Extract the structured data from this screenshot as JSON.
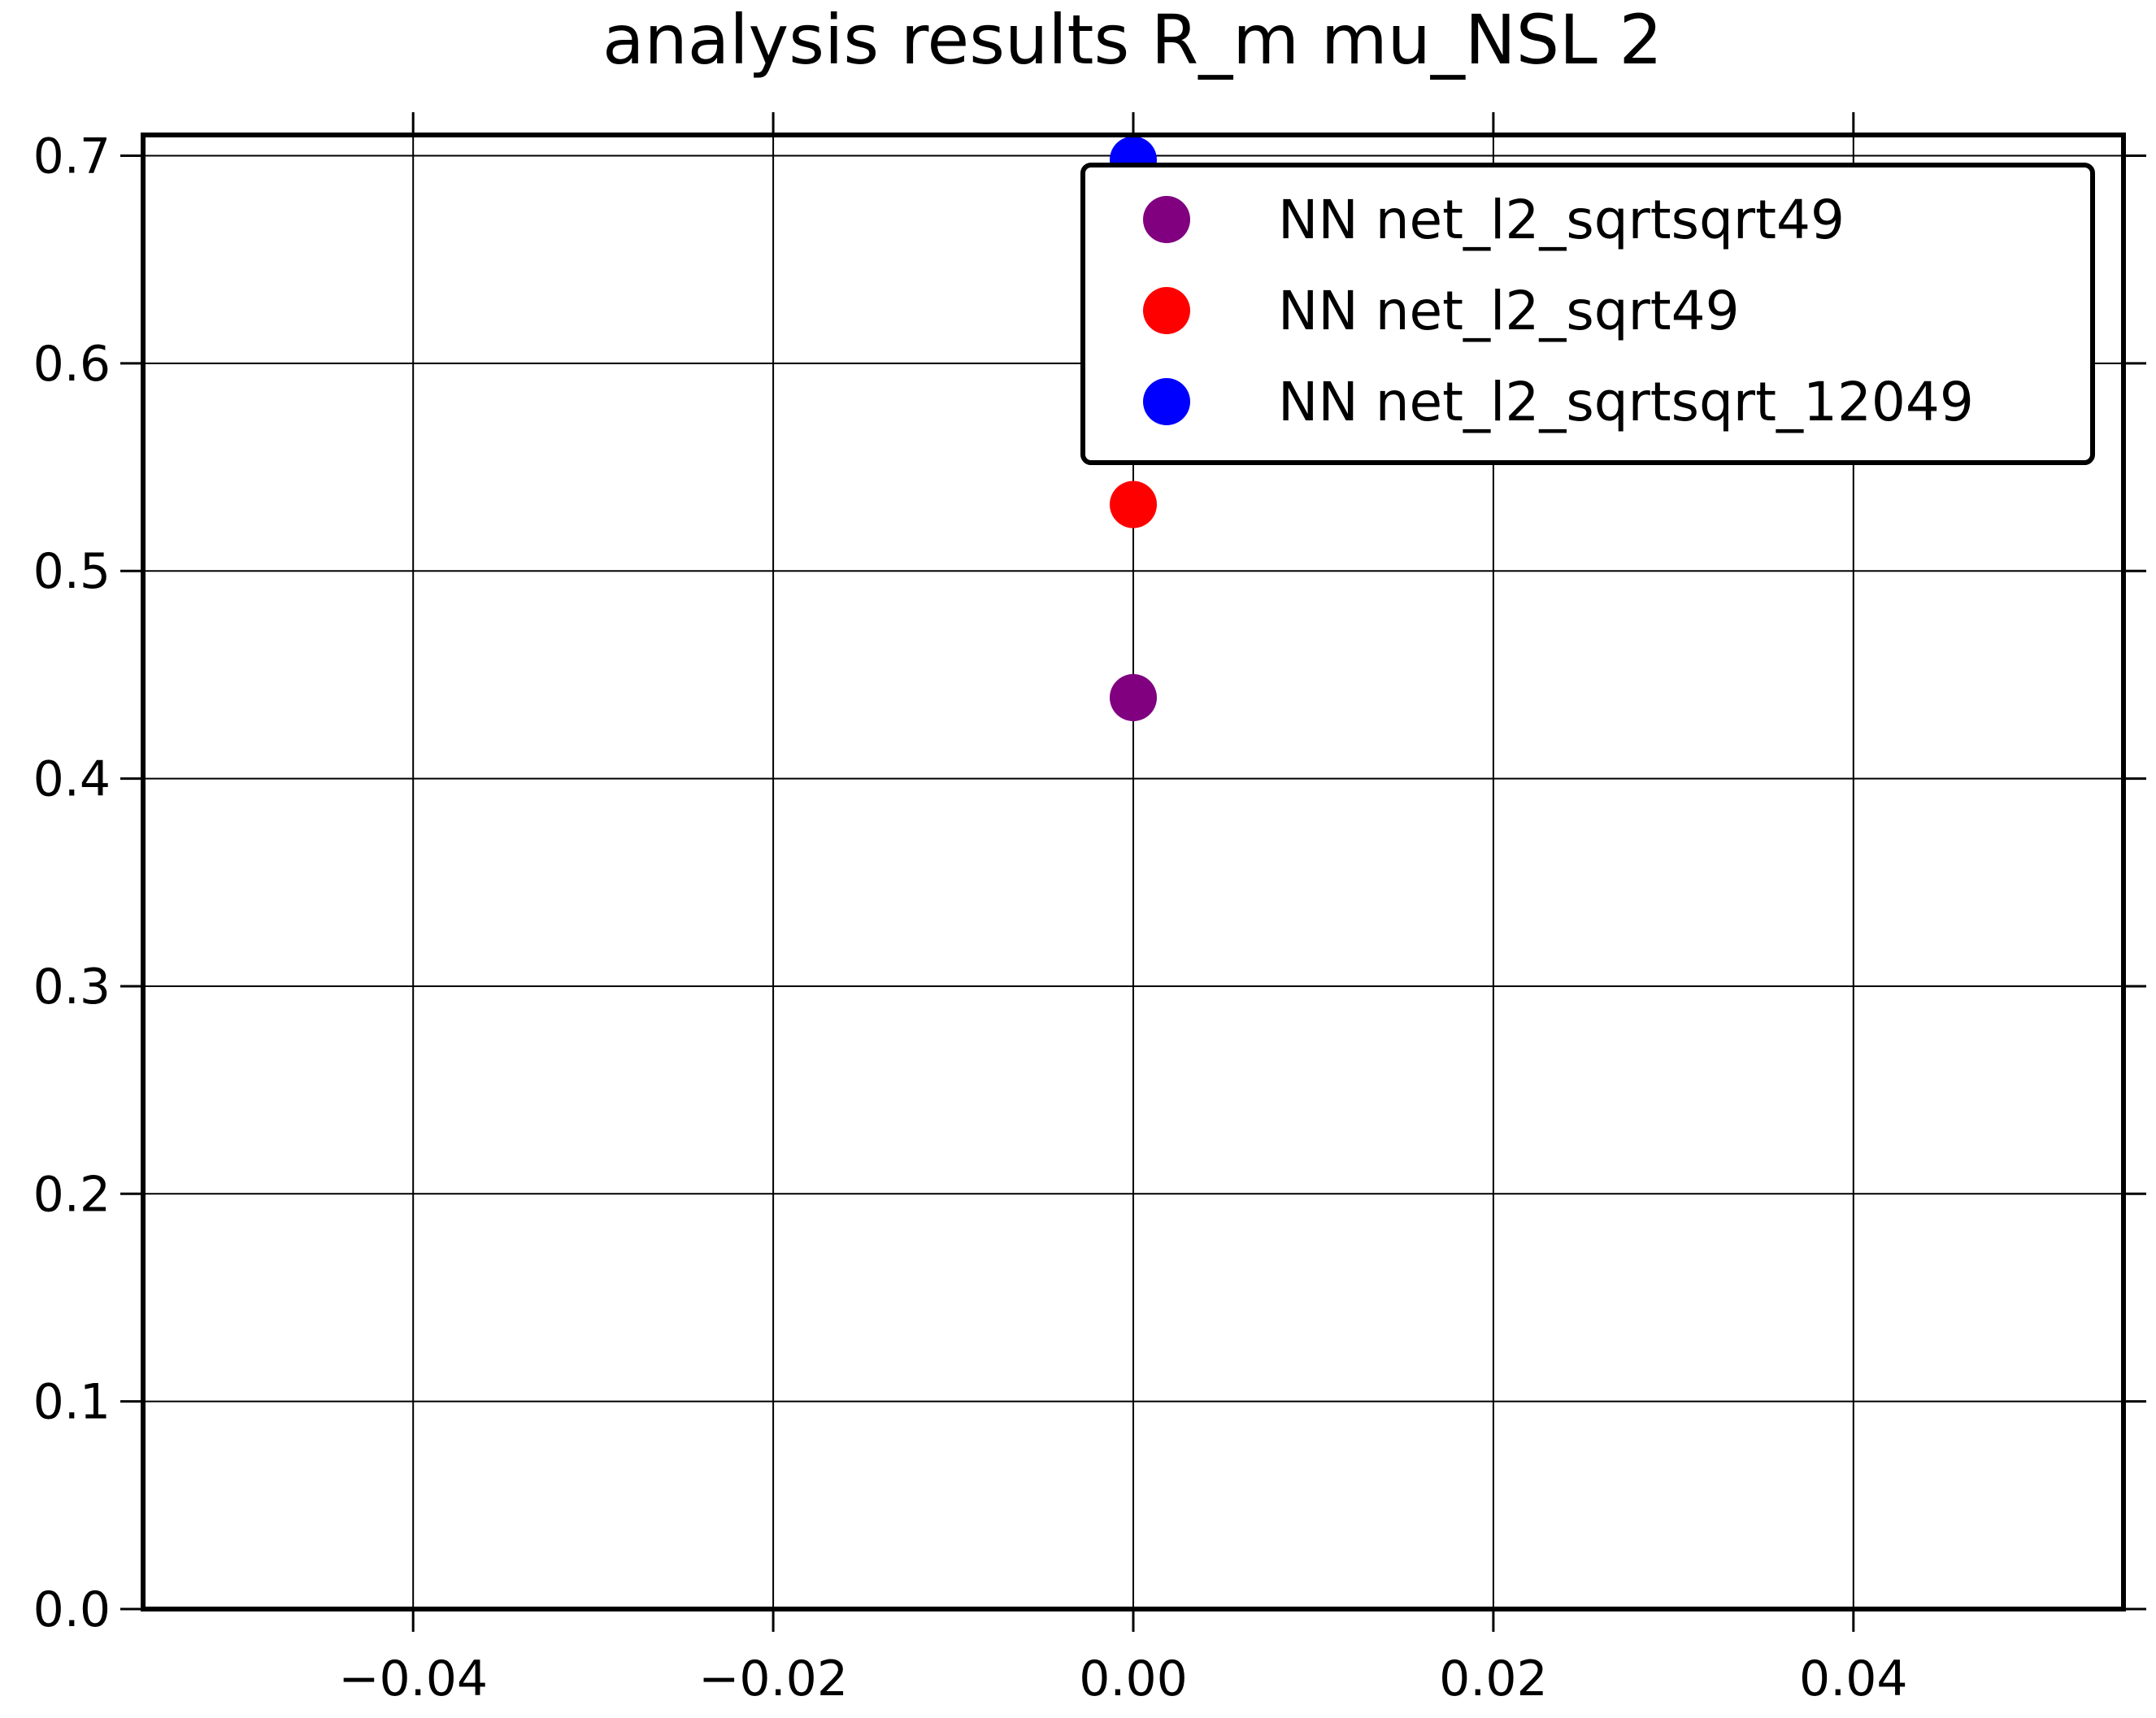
{
  "chart_data": {
    "type": "scatter",
    "title": "analysis results R_m  mu_NSL 2",
    "xlabel": "",
    "ylabel": "",
    "xlim": [
      -0.055,
      0.055
    ],
    "ylim": [
      0.0,
      0.71
    ],
    "x_ticks": [
      -0.04,
      -0.02,
      0.0,
      0.02,
      0.04
    ],
    "x_tick_labels": [
      "−0.04",
      "−0.02",
      "0.00",
      "0.02",
      "0.04"
    ],
    "y_ticks": [
      0.0,
      0.1,
      0.2,
      0.3,
      0.4,
      0.5,
      0.6,
      0.7
    ],
    "y_tick_labels": [
      "0.0",
      "0.1",
      "0.2",
      "0.3",
      "0.4",
      "0.5",
      "0.6",
      "0.7"
    ],
    "grid": true,
    "legend_position": "top-right",
    "series": [
      {
        "name": "NN net_l2_sqrtsqrt49",
        "color": "#800080",
        "points": [
          {
            "x": 0.0,
            "y": 0.439
          }
        ]
      },
      {
        "name": "NN net_l2_sqrt49",
        "color": "#ff0000",
        "points": [
          {
            "x": 0.0,
            "y": 0.532
          }
        ]
      },
      {
        "name": "NN net_l2_sqrtsqrt_12049",
        "color": "#0000ff",
        "points": [
          {
            "x": 0.0,
            "y": 0.698
          }
        ]
      }
    ]
  }
}
